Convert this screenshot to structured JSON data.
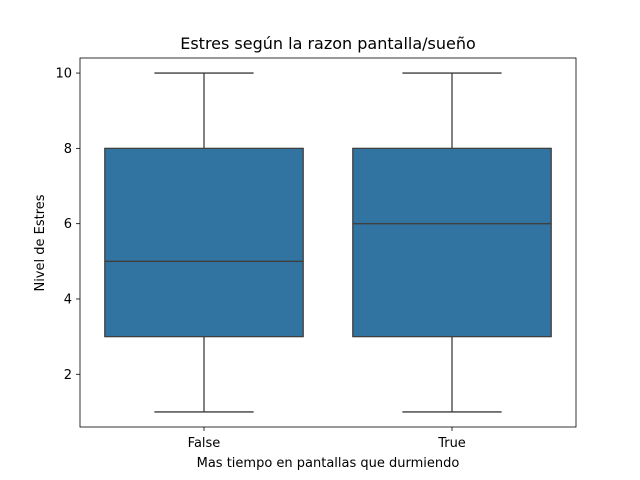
{
  "chart_data": {
    "type": "box",
    "title": "Estres según la razon pantalla/sueño",
    "xlabel": "Mas tiempo en pantallas que durmiendo",
    "ylabel": "Nivel de Estres",
    "categories": [
      "False",
      "True"
    ],
    "y_ticks": [
      2,
      4,
      6,
      8,
      10
    ],
    "ylim": [
      0.6,
      10.4
    ],
    "grid": false,
    "box_color": "#3274a1",
    "boxes": [
      {
        "category": "False",
        "min": 1,
        "q1": 3,
        "median": 5,
        "q3": 8,
        "max": 10
      },
      {
        "category": "True",
        "min": 1,
        "q1": 3,
        "median": 6,
        "q3": 8,
        "max": 10
      }
    ]
  }
}
